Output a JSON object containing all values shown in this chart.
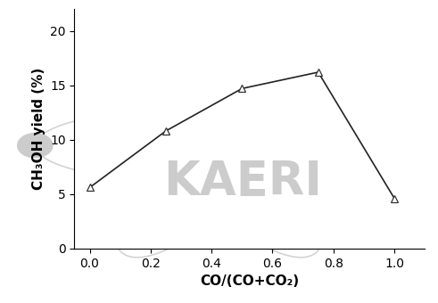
{
  "x": [
    0.0,
    0.25,
    0.5,
    0.75,
    1.0
  ],
  "y": [
    5.6,
    10.8,
    14.7,
    16.2,
    4.6
  ],
  "xlabel": "CO/(CO+CO₂)",
  "ylabel": "CH₃OH yield (%)",
  "xlim": [
    -0.05,
    1.1
  ],
  "ylim": [
    0,
    22
  ],
  "xticks": [
    0.0,
    0.2,
    0.4,
    0.6,
    0.8,
    1.0
  ],
  "yticks": [
    0,
    5,
    10,
    15,
    20
  ],
  "line_color": "#222222",
  "marker": "^",
  "marker_size": 6,
  "marker_facecolor": "white",
  "marker_edgecolor": "#333333",
  "watermark_text": "KAERI",
  "watermark_color": "#cccccc",
  "watermark_fontsize": 38,
  "xlabel_fontsize": 11,
  "ylabel_fontsize": 11,
  "tick_fontsize": 10,
  "xlabel_fontweight": "bold",
  "ylabel_fontweight": "bold",
  "background_color": "#ffffff",
  "orbit_color": "#cccccc",
  "orbit_alpha": 0.85,
  "nucleus_color": "#cccccc"
}
